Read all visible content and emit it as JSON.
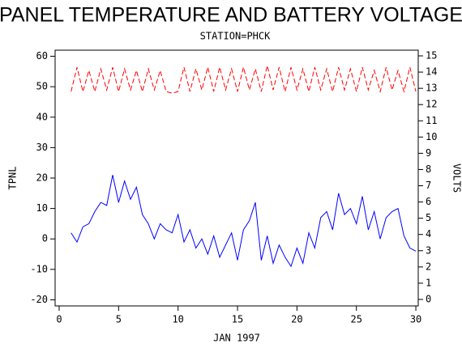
{
  "chart_data": {
    "type": "line",
    "title": "PANEL TEMPERATURE AND BATTERY VOLTAGE",
    "subtitle": "STATION=PHCK",
    "x_label": "JAN 1997",
    "y_label": "TPNL",
    "y2_label": "VOLTS",
    "x": [
      1,
      1.5,
      2,
      2.5,
      3,
      3.5,
      4,
      4.5,
      5,
      5.5,
      6,
      6.5,
      7,
      7.5,
      8,
      8.5,
      9,
      9.5,
      10,
      10.5,
      11,
      11.5,
      12,
      12.5,
      13,
      13.5,
      14,
      14.5,
      15,
      15.5,
      16,
      16.5,
      17,
      17.5,
      18,
      18.5,
      19,
      19.5,
      20,
      20.5,
      21,
      21.5,
      22,
      22.5,
      23,
      23.5,
      24,
      24.5,
      25,
      25.5,
      26,
      26.5,
      27,
      27.5,
      28,
      28.5,
      29,
      29.5,
      30
    ],
    "series": [
      {
        "name": "TPNL",
        "color": "#0000ff",
        "axis": "y",
        "dashed": false,
        "values": [
          2,
          -1,
          4,
          5,
          9,
          12,
          11,
          21,
          12,
          19,
          13,
          17,
          8,
          5,
          0,
          5,
          3,
          2,
          8,
          -1,
          3,
          -3,
          0,
          -5,
          1,
          -6,
          -2,
          2,
          -7,
          3,
          6,
          12,
          -7,
          1,
          -8,
          -2,
          -6,
          -9,
          -3,
          -8,
          2,
          -3,
          7,
          9,
          3,
          15,
          8,
          10,
          5,
          14,
          3,
          9,
          0,
          7,
          9,
          10,
          1,
          -3,
          -4
        ]
      },
      {
        "name": "VOLTS",
        "color": "#ff0000",
        "axis": "y2",
        "dashed": true,
        "values": [
          12.8,
          14.3,
          12.8,
          14.1,
          12.8,
          14.2,
          12.9,
          14.3,
          12.8,
          14.2,
          12.9,
          14.1,
          12.8,
          14.2,
          12.9,
          14.1,
          12.8,
          12.7,
          12.8,
          14.3,
          12.8,
          14.2,
          12.9,
          14.3,
          12.8,
          14.3,
          12.9,
          14.2,
          12.8,
          14.3,
          12.9,
          14.2,
          12.8,
          14.4,
          12.9,
          14.3,
          12.8,
          14.3,
          12.9,
          14.2,
          12.8,
          14.3,
          12.9,
          14.2,
          12.8,
          14.3,
          12.9,
          14.2,
          12.8,
          14.3,
          12.9,
          14.1,
          12.8,
          14.3,
          12.9,
          14.1,
          12.8,
          14.3,
          12.8
        ]
      }
    ],
    "xlim": [
      -0.34,
      30.2
    ],
    "xticks": [
      0,
      5,
      10,
      15,
      20,
      25,
      30
    ],
    "ylim": [
      -22,
      62
    ],
    "yticks": [
      -20,
      -10,
      0,
      10,
      20,
      30,
      40,
      50,
      60
    ],
    "y2lim": [
      -0.4,
      15.35
    ],
    "y2ticks": [
      0,
      1,
      2,
      3,
      4,
      5,
      6,
      7,
      8,
      9,
      10,
      11,
      12,
      13,
      14,
      15
    ]
  }
}
